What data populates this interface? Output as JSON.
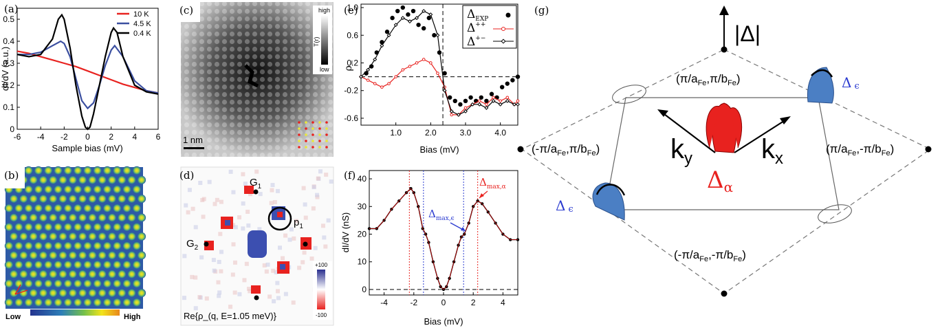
{
  "panels": {
    "a": {
      "label": "(a)",
      "legend": [
        "10 K",
        "4.5 K",
        "0.4 K"
      ],
      "xlabel": "Sample bias (mV)",
      "ylabel": "dI/dV (a.u.)"
    },
    "b": {
      "label": "(b)",
      "colorbar_low": "Low",
      "colorbar_high": "High"
    },
    "c": {
      "label": "(c)",
      "cbar_high": "high",
      "cbar_low": "low",
      "cbar_title": "T(r)",
      "scalebar": "1 nm"
    },
    "d": {
      "label": "(d)",
      "G1": "G",
      "G1_sub": "1",
      "G2": "G",
      "G2_sub": "2",
      "p1": "p",
      "p1_sub": "1",
      "cbar_max": "+100",
      "cbar_min": "-100",
      "caption": "Re{ρ_(q, E=1.05 meV)}"
    },
    "e": {
      "label": "(e)",
      "ylabel": "ρ",
      "ylabel_sub": "−",
      "xlabel": "Bias (mV)",
      "legend": [
        {
          "main": "Δ",
          "sub": "EXP"
        },
        {
          "main": "Δ",
          "sup": "++"
        },
        {
          "main": "Δ",
          "sup": "+−"
        }
      ]
    },
    "f": {
      "label": "(f)",
      "ylabel": "dI/dV (nS)",
      "xlabel": "Bias (mV)",
      "ann_blue": "Δ",
      "ann_blue_sub": "max,ϵ",
      "ann_red": "Δ",
      "ann_red_sub": "max,α"
    },
    "g": {
      "label": "(g)",
      "top_label": "|Δ|",
      "pt_top": "(π/a",
      "pt_top_sub1": "Fe",
      "pt_top_mid": ",π/b",
      "pt_top_sub2": "Fe",
      "pt_top_end": ")",
      "pt_left": "(-π/a",
      "pt_left_mid": ",π/b",
      "pt_right": "(π/a",
      "pt_right_mid": ",-π/b",
      "pt_bottom": "(-π/a",
      "pt_bottom_mid": ",-π/b",
      "fe_sub": "Fe",
      "close": ")",
      "ky": "k",
      "ky_sub": "y",
      "kx": "k",
      "kx_sub": "x",
      "delta_alpha": "Δ",
      "delta_alpha_sub": "α",
      "delta_eps": "Δ",
      "delta_eps_sub": "ϵ"
    }
  },
  "chart_data": [
    {
      "type": "line",
      "panel": "a",
      "xlabel": "Sample bias (mV)",
      "ylabel": "dI/dV (a.u.)",
      "xlim": [
        -6,
        6
      ],
      "ylim": [
        0,
        0.55
      ],
      "xticks": [
        "-6",
        "-4",
        "-2",
        "0",
        "2",
        "4",
        "6"
      ],
      "yticks": [
        "0",
        "0.1",
        "0.2",
        "0.3",
        "0.4",
        "0.5"
      ],
      "legend_position": "top-right",
      "series": [
        {
          "name": "10 K",
          "color": "#e8221f",
          "x": [
            -6,
            -5,
            -4,
            -3,
            -2,
            -1,
            0,
            1,
            2,
            3,
            4,
            5,
            6
          ],
          "y": [
            0.355,
            0.345,
            0.33,
            0.315,
            0.3,
            0.285,
            0.265,
            0.245,
            0.225,
            0.205,
            0.19,
            0.175,
            0.165
          ]
        },
        {
          "name": "4.5 K",
          "color": "#3b4fa0",
          "x": [
            -6,
            -5,
            -4,
            -3,
            -2.3,
            -2,
            -1.5,
            -1,
            -0.5,
            0,
            0.5,
            1,
            1.5,
            2,
            2.3,
            3,
            4,
            5,
            6
          ],
          "y": [
            0.34,
            0.34,
            0.35,
            0.38,
            0.4,
            0.39,
            0.33,
            0.23,
            0.13,
            0.095,
            0.12,
            0.2,
            0.29,
            0.36,
            0.38,
            0.33,
            0.22,
            0.175,
            0.165
          ]
        },
        {
          "name": "0.4 K",
          "color": "#000000",
          "x": [
            -6,
            -5,
            -4,
            -3,
            -2.5,
            -2.2,
            -2,
            -1.5,
            -1,
            -0.5,
            -0.2,
            0,
            0.2,
            0.5,
            1,
            1.5,
            2,
            2.2,
            2.5,
            3,
            4,
            5,
            6
          ],
          "y": [
            0.34,
            0.33,
            0.34,
            0.41,
            0.5,
            0.52,
            0.5,
            0.37,
            0.2,
            0.06,
            0.01,
            0.0,
            0.01,
            0.07,
            0.2,
            0.33,
            0.44,
            0.46,
            0.44,
            0.33,
            0.2,
            0.17,
            0.16
          ]
        }
      ]
    },
    {
      "type": "line",
      "panel": "e",
      "xlabel": "Bias (mV)",
      "ylabel": "ρ−",
      "xlim": [
        0,
        4.5
      ],
      "ylim": [
        -0.7,
        1.05
      ],
      "xticks": [
        "1.0",
        "2.0",
        "3.0",
        "4.0"
      ],
      "yticks": [
        "-0.6",
        "-0.2",
        "0.2",
        "0.6",
        "1.0"
      ],
      "legend_position": "top-right",
      "series": [
        {
          "name": "Δ EXP",
          "color": "#000000",
          "marker": "dot",
          "x": [
            0.15,
            0.3,
            0.45,
            0.6,
            0.75,
            0.9,
            1.05,
            1.2,
            1.35,
            1.5,
            1.65,
            1.8,
            1.95,
            2.1,
            2.25,
            2.4,
            2.55,
            2.7,
            2.85,
            3.0,
            3.15,
            3.3,
            3.45,
            3.6,
            3.75,
            3.9,
            4.05,
            4.2,
            4.35,
            4.5
          ],
          "y": [
            0.05,
            0.15,
            0.35,
            0.5,
            0.65,
            0.85,
            0.95,
            1.0,
            0.9,
            0.95,
            0.75,
            0.7,
            0.85,
            0.6,
            0.35,
            0.05,
            -0.3,
            -0.35,
            -0.4,
            -0.35,
            -0.3,
            -0.35,
            -0.3,
            -0.35,
            -0.25,
            -0.3,
            -0.15,
            -0.1,
            -0.05,
            0.0
          ]
        },
        {
          "name": "Δ ++",
          "color": "#e8221f",
          "marker": "circle",
          "x": [
            0,
            0.2,
            0.4,
            0.6,
            0.8,
            1.0,
            1.2,
            1.4,
            1.6,
            1.8,
            2.0,
            2.2,
            2.4,
            2.6,
            2.8,
            3.0,
            3.2,
            3.4,
            3.6,
            3.8,
            4.0,
            4.2,
            4.4,
            4.5
          ],
          "y": [
            0.0,
            -0.05,
            -0.1,
            -0.15,
            -0.1,
            0.0,
            0.1,
            0.15,
            0.2,
            0.25,
            0.2,
            0.05,
            -0.15,
            -0.55,
            -0.55,
            -0.45,
            -0.4,
            -0.35,
            -0.4,
            -0.3,
            -0.35,
            -0.3,
            -0.4,
            -0.35
          ]
        },
        {
          "name": "Δ +−",
          "color": "#000000",
          "marker": "diamond",
          "x": [
            0,
            0.2,
            0.4,
            0.6,
            0.8,
            1.0,
            1.2,
            1.4,
            1.6,
            1.8,
            2.0,
            2.2,
            2.4,
            2.6,
            2.8,
            3.0,
            3.2,
            3.4,
            3.6,
            3.8,
            4.0,
            4.2,
            4.4,
            4.5
          ],
          "y": [
            0.0,
            0.1,
            0.25,
            0.45,
            0.6,
            0.75,
            0.85,
            0.8,
            0.85,
            0.95,
            0.9,
            0.6,
            -0.2,
            -0.5,
            -0.55,
            -0.5,
            -0.4,
            -0.4,
            -0.45,
            -0.35,
            -0.4,
            -0.35,
            -0.4,
            -0.4
          ]
        }
      ],
      "vline": 2.35,
      "hline": 0
    },
    {
      "type": "line",
      "panel": "f",
      "xlabel": "Bias (mV)",
      "ylabel": "dI/dV (nS)",
      "xlim": [
        -5,
        5
      ],
      "ylim": [
        -2,
        43
      ],
      "xticks": [
        "-4",
        "-2",
        "0",
        "2",
        "4"
      ],
      "yticks": [
        "0",
        "10",
        "20",
        "30",
        "40"
      ],
      "series": [
        {
          "name": "",
          "color": "#000000",
          "x": [
            -5,
            -4.5,
            -4,
            -3.5,
            -3,
            -2.5,
            -2.2,
            -2,
            -1.7,
            -1.4,
            -1.2,
            -1,
            -0.7,
            -0.4,
            -0.2,
            0,
            0.2,
            0.4,
            0.7,
            1,
            1.2,
            1.4,
            1.7,
            2,
            2.3,
            2.6,
            3,
            3.5,
            4,
            4.5,
            5
          ],
          "y": [
            22,
            22,
            25,
            29,
            32,
            35,
            36.5,
            35,
            30,
            22,
            20,
            17,
            10,
            4,
            1,
            0,
            1,
            4,
            10,
            16,
            19,
            20,
            24,
            30,
            32,
            31,
            28,
            24,
            20,
            18,
            18
          ]
        }
      ],
      "vlines_red": [
        -2.3,
        2.3
      ],
      "vlines_blue": [
        -1.35,
        1.35
      ],
      "hline": 0
    }
  ]
}
